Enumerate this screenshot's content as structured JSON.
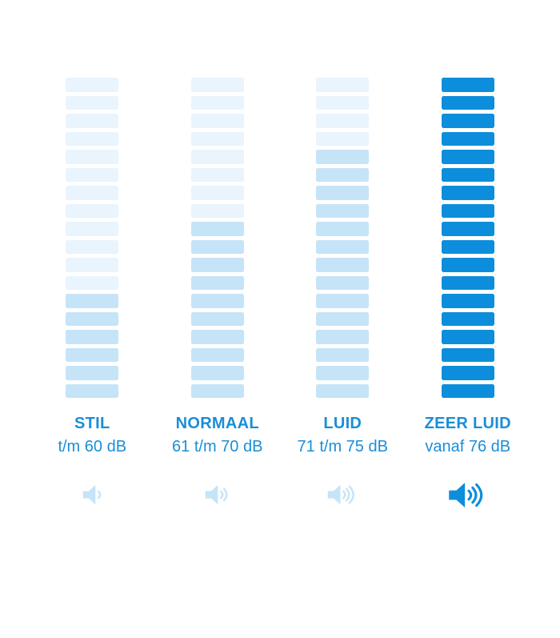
{
  "palette": {
    "bar_light": "#e9f4fd",
    "bar_medium": "#c6e4f8",
    "bar_strong": "#0d8edc",
    "label_color": "#1a8ed8"
  },
  "chart_data": {
    "type": "bar",
    "subtype": "segmented-level-indicator",
    "title": "",
    "unit": "dB",
    "segments_per_column": 18,
    "categories": [
      "STIL",
      "NORMAAL",
      "LUID",
      "ZEER LUID"
    ],
    "ranges": [
      "t/m 60 dB",
      "61 t/m 70 dB",
      "71 t/m 75 dB",
      "vanaf 76 dB"
    ],
    "filled_segments": [
      6,
      10,
      14,
      18
    ],
    "speaker_wave_counts": [
      1,
      2,
      3,
      3
    ],
    "legend_position": "none",
    "grid": false
  },
  "columns": [
    {
      "label": "STIL",
      "range": "t/m 60 dB",
      "filled": 6,
      "waves": 1,
      "strong": false
    },
    {
      "label": "NORMAAL",
      "range": "61 t/m 70 dB",
      "filled": 10,
      "waves": 2,
      "strong": false
    },
    {
      "label": "LUID",
      "range": "71 t/m 75 dB",
      "filled": 14,
      "waves": 3,
      "strong": false
    },
    {
      "label": "ZEER LUID",
      "range": "vanaf 76 dB",
      "filled": 18,
      "waves": 3,
      "strong": true
    }
  ]
}
